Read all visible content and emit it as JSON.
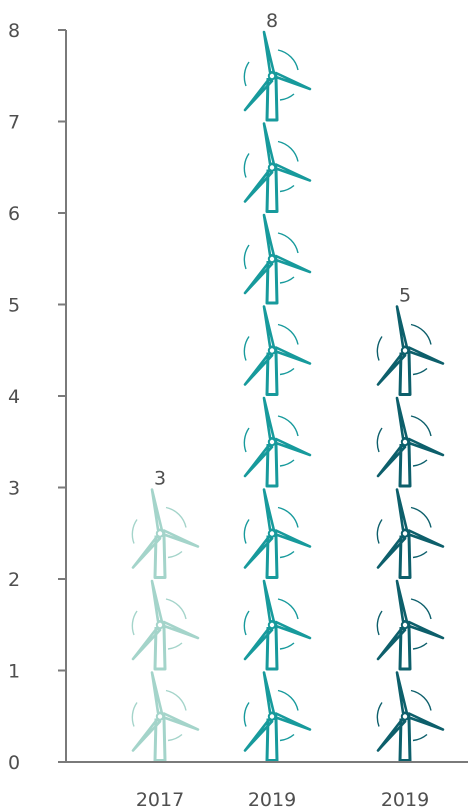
{
  "chart_data": {
    "type": "bar",
    "subtype": "pictograph",
    "icon": "wind-turbine-icon",
    "categories": [
      "2017",
      "2019",
      "2019"
    ],
    "values": [
      3,
      8,
      5
    ],
    "ylim": [
      0,
      8
    ],
    "yticks": [
      "0",
      "1",
      "2",
      "3",
      "4",
      "5",
      "6",
      "7",
      "8"
    ],
    "value_labels": [
      "3",
      "8",
      "5"
    ],
    "colors": [
      "#a4d4ca",
      "#179a9c",
      "#0d5f6b"
    ],
    "axis_color": "#7a7a7a",
    "grid": false,
    "title": "",
    "xlabel": "",
    "ylabel": ""
  }
}
